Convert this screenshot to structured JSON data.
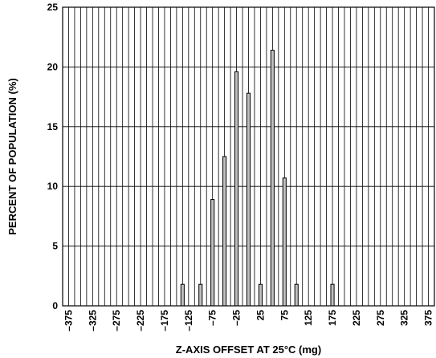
{
  "chart_data": {
    "type": "bar",
    "title": "",
    "xlabel": "Z-AXIS OFFSET AT 25°C (mg)",
    "ylabel": "PERCENT OF POPULATION (%)",
    "xlim": [
      -387.5,
      387.5
    ],
    "ylim": [
      0,
      25
    ],
    "bin_width": 12.5,
    "x_ticks": [
      -375,
      -325,
      -275,
      -225,
      -175,
      -125,
      -75,
      -25,
      25,
      75,
      125,
      175,
      225,
      275,
      325,
      375
    ],
    "x_tick_labels": [
      "–375",
      "–325",
      "–275",
      "–225",
      "–175",
      "–125",
      "–75",
      "–25",
      "25",
      "75",
      "125",
      "175",
      "225",
      "275",
      "325",
      "375"
    ],
    "y_ticks": [
      0,
      5,
      10,
      15,
      20,
      25
    ],
    "y_tick_labels": [
      "0",
      "5",
      "10",
      "15",
      "20",
      "25"
    ],
    "grid": true,
    "bar_color": "#c0c0c0",
    "bars": [
      {
        "x": -137.5,
        "value": 1.8
      },
      {
        "x": -100,
        "value": 1.8
      },
      {
        "x": -75,
        "value": 8.9
      },
      {
        "x": -50,
        "value": 12.5
      },
      {
        "x": -25,
        "value": 19.6
      },
      {
        "x": 0,
        "value": 17.8
      },
      {
        "x": 25,
        "value": 1.8
      },
      {
        "x": 50,
        "value": 21.4
      },
      {
        "x": 75,
        "value": 10.7
      },
      {
        "x": 100,
        "value": 1.8
      },
      {
        "x": 175,
        "value": 1.8
      }
    ]
  }
}
